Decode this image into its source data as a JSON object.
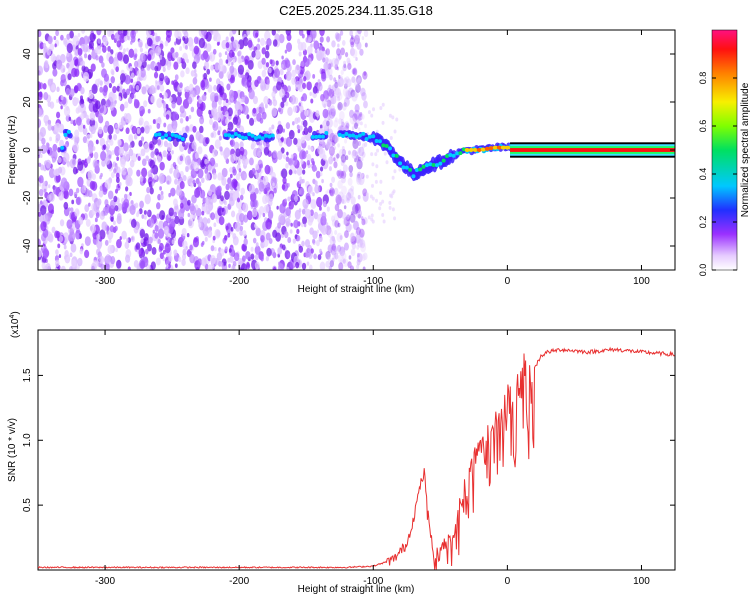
{
  "title": "C2E5.2025.234.11.35.G18",
  "chart_data": [
    {
      "type": "heatmap",
      "xlabel": "Height of straight line (km)",
      "ylabel": "Frequency (Hz)",
      "xlim": [
        -350,
        125
      ],
      "ylim": [
        -50,
        50
      ],
      "xticks": [
        -300,
        -200,
        -100,
        0,
        100
      ],
      "yticks": [
        -40,
        -20,
        0,
        20,
        40
      ],
      "colorbar": {
        "label": "Normalized spectral amplitude",
        "range": [
          0.0,
          1.0
        ],
        "ticks": [
          0.0,
          0.2,
          0.4,
          0.6,
          0.8
        ],
        "tick_labels": [
          "0.0",
          "0.2",
          "0.4",
          "0.6",
          "0.8"
        ]
      },
      "ridge": {
        "x": [
          -330,
          -260,
          -240,
          -200,
          -170,
          -140,
          -125,
          -110,
          -100,
          -90,
          -80,
          -70,
          -60,
          -50,
          -40,
          -30,
          -20,
          -10,
          0,
          125
        ],
        "freq": [
          7,
          6,
          5,
          6,
          5,
          6,
          7,
          6,
          5,
          2,
          -5,
          -10,
          -7,
          -5,
          -2,
          0,
          0,
          1,
          1,
          0
        ]
      },
      "noise_x_limit": -110
    },
    {
      "type": "line",
      "xlabel": "Height of straight line (km)",
      "ylabel": "SNR (10 * v/v)",
      "y_scale_label": "(x10",
      "y_scale_exp": "4",
      "xlim": [
        -350,
        125
      ],
      "ylim": [
        0,
        1.85
      ],
      "xticks": [
        -300,
        -200,
        -100,
        0,
        100
      ],
      "yticks": [
        0.5,
        1.0,
        1.5
      ],
      "ytick_labels": [
        "0.5",
        "1.0",
        "1.5"
      ],
      "series": [
        {
          "name": "SNR",
          "color": "#e83030",
          "x": [
            -350,
            -300,
            -200,
            -120,
            -100,
            -85,
            -75,
            -70,
            -65,
            -62,
            -60,
            -58,
            -55,
            -50,
            -45,
            -40,
            -35,
            -30,
            -25,
            -20,
            -15,
            -10,
            -5,
            0,
            5,
            10,
            15,
            20,
            25,
            30,
            40,
            60,
            80,
            100,
            125
          ],
          "y": [
            0.02,
            0.02,
            0.02,
            0.02,
            0.03,
            0.08,
            0.2,
            0.4,
            0.65,
            0.75,
            0.55,
            0.35,
            0.1,
            0.15,
            0.25,
            0.3,
            0.55,
            0.7,
            0.85,
            1.0,
            1.05,
            1.15,
            1.2,
            1.3,
            1.35,
            1.45,
            1.6,
            1.55,
            1.65,
            1.68,
            1.7,
            1.68,
            1.7,
            1.68,
            1.66
          ]
        }
      ]
    }
  ]
}
